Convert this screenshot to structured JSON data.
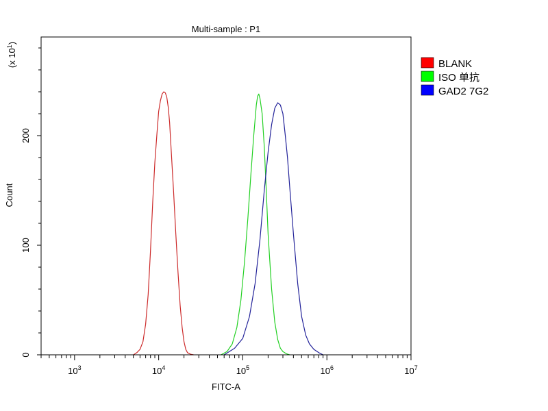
{
  "chart_data": {
    "type": "line",
    "title": "Multi-sample : P1",
    "xlabel": "FITC-A",
    "ylabel": "Count",
    "y_multiplier": {
      "prefix": "(x 10",
      "exponent": "1",
      "suffix": ")"
    },
    "x_scale": "log",
    "xlim": [
      400,
      10000000
    ],
    "ylim": [
      0,
      290
    ],
    "x_ticks": [
      {
        "value": 1000,
        "base": "10",
        "exp": "3"
      },
      {
        "value": 10000,
        "base": "10",
        "exp": "4"
      },
      {
        "value": 100000,
        "base": "10",
        "exp": "5"
      },
      {
        "value": 1000000,
        "base": "10",
        "exp": "6"
      },
      {
        "value": 10000000,
        "base": "10",
        "exp": "7"
      }
    ],
    "y_ticks": [
      {
        "value": 0,
        "label": "0"
      },
      {
        "value": 100,
        "label": "100"
      },
      {
        "value": 200,
        "label": "200"
      }
    ],
    "legend_position": "right",
    "series": [
      {
        "name": "BLANK",
        "color": "#cc2a2a",
        "legend_color": "#ff0000",
        "x": [
          5000,
          5500,
          6000,
          6500,
          7000,
          7500,
          8000,
          8500,
          9000,
          9500,
          10000,
          10500,
          11000,
          11500,
          12000,
          12500,
          13000,
          13500,
          14000,
          15000,
          16000,
          17000,
          18000,
          19000,
          20000,
          21000,
          22000,
          24000,
          26000
        ],
        "y": [
          0,
          2,
          5,
          12,
          28,
          55,
          95,
          140,
          175,
          200,
          222,
          232,
          238,
          240,
          239,
          235,
          226,
          212,
          190,
          150,
          110,
          75,
          45,
          25,
          12,
          5,
          2,
          0.5,
          0
        ]
      },
      {
        "name": "ISO 单抗",
        "color": "#22d022",
        "legend_color": "#00ff00",
        "x": [
          55000,
          65000,
          75000,
          85000,
          95000,
          105000,
          115000,
          125000,
          135000,
          145000,
          150000,
          155000,
          160000,
          170000,
          180000,
          190000,
          200000,
          220000,
          240000,
          260000,
          280000,
          300000,
          330000,
          360000
        ],
        "y": [
          0,
          3,
          10,
          25,
          50,
          85,
          125,
          165,
          200,
          228,
          236,
          238,
          234,
          220,
          190,
          150,
          110,
          60,
          30,
          14,
          6,
          3,
          1,
          0
        ]
      },
      {
        "name": "GAD2 7G2",
        "color": "#222299",
        "legend_color": "#0000ff",
        "x": [
          60000,
          80000,
          100000,
          120000,
          140000,
          160000,
          180000,
          200000,
          220000,
          240000,
          260000,
          280000,
          300000,
          320000,
          340000,
          360000,
          400000,
          450000,
          500000,
          560000,
          620000,
          700000,
          800000,
          900000
        ],
        "y": [
          0,
          6,
          15,
          35,
          65,
          105,
          150,
          185,
          210,
          225,
          230,
          228,
          220,
          200,
          180,
          155,
          110,
          65,
          35,
          18,
          10,
          5,
          2,
          0
        ]
      }
    ]
  }
}
